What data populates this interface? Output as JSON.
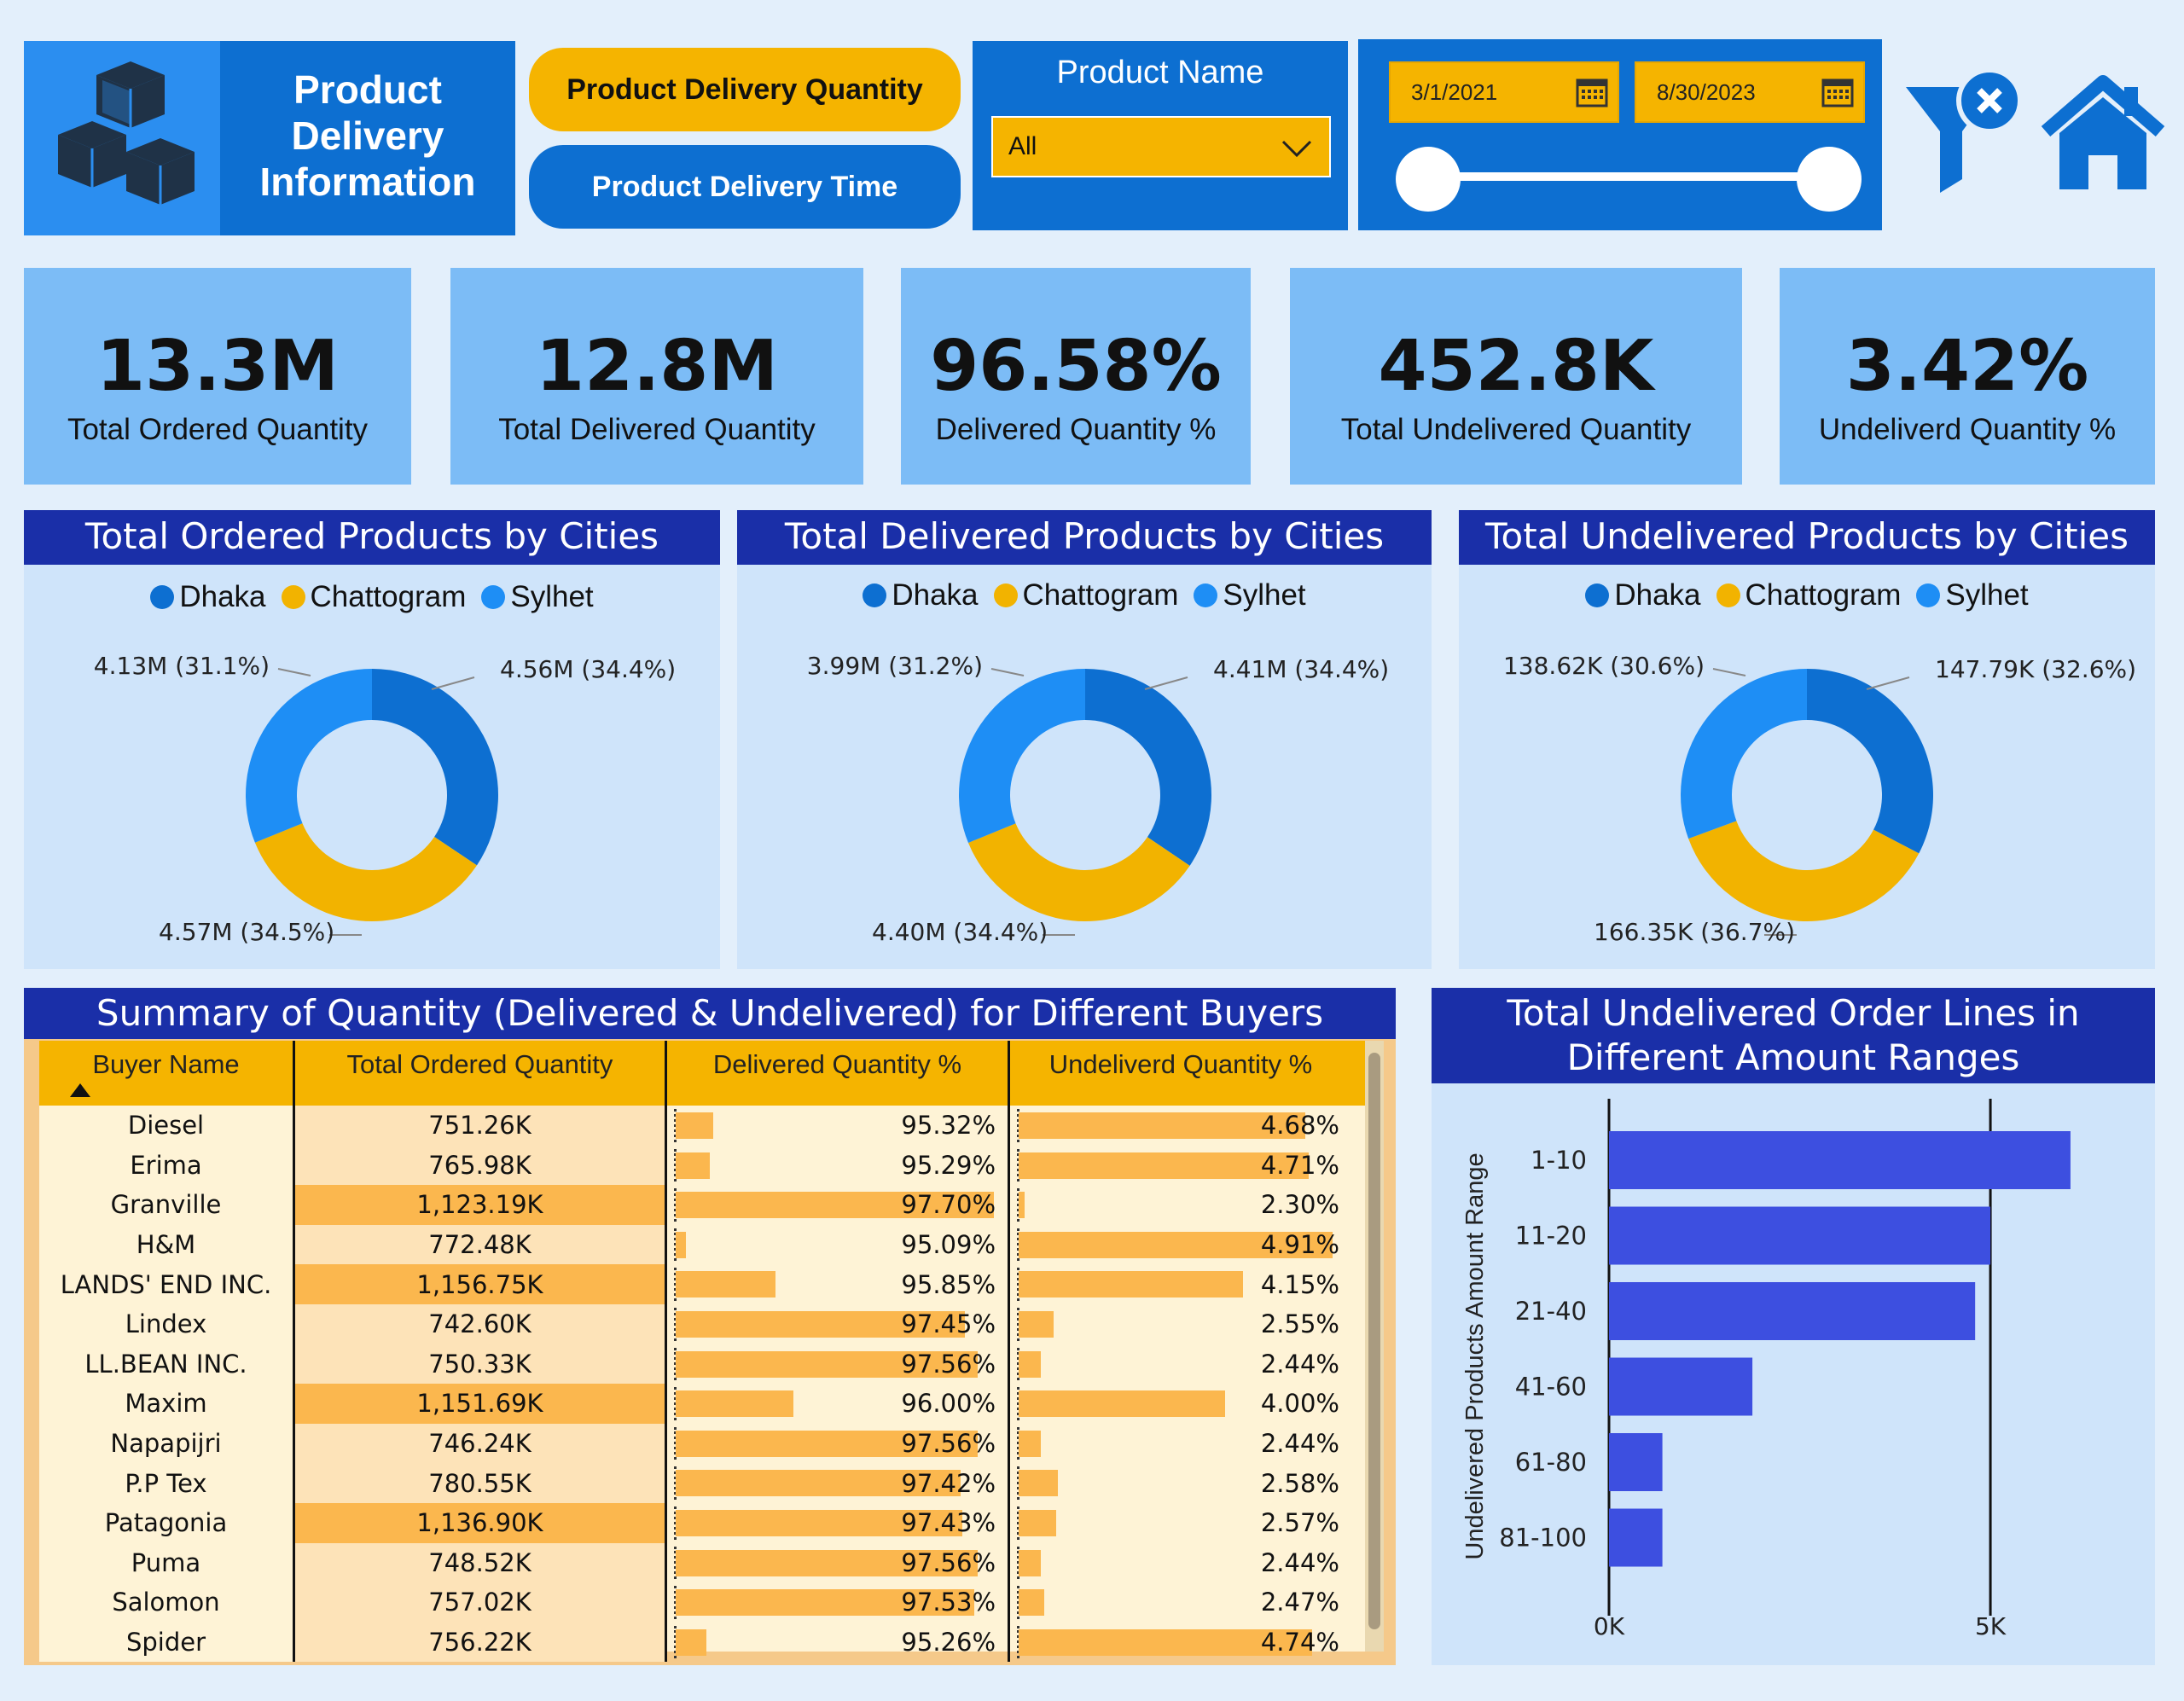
{
  "header": {
    "title": "Product Delivery Information",
    "btn_quantity": "Product Delivery Quantity",
    "btn_time": "Product Delivery Time",
    "product_slicer_label": "Product Name",
    "product_selected": "All",
    "date_start": "3/1/2021",
    "date_end": "8/30/2023"
  },
  "kpis": [
    {
      "value": "13.3M",
      "label": "Total Ordered Quantity"
    },
    {
      "value": "12.8M",
      "label": "Total Delivered Quantity"
    },
    {
      "value": "96.58%",
      "label": "Delivered Quantity %"
    },
    {
      "value": "452.8K",
      "label": "Total Undelivered Quantity"
    },
    {
      "value": "3.42%",
      "label": "Undeliverd Quantity %"
    }
  ],
  "colors": {
    "dhaka": "#0d6fd1",
    "chattogram": "#f2b300",
    "sylhet": "#1e8ef5",
    "bar": "#3d4fe0"
  },
  "legend": [
    "Dhaka",
    "Chattogram",
    "Sylhet"
  ],
  "chart_data": [
    {
      "type": "pie",
      "title": "Total Ordered Products by Cities",
      "categories": [
        "Dhaka",
        "Chattogram",
        "Sylhet"
      ],
      "values": [
        4.56,
        4.57,
        4.13
      ],
      "labels": [
        "4.56M (34.4%)",
        "4.57M (34.5%)",
        "4.13M (31.1%)"
      ]
    },
    {
      "type": "pie",
      "title": "Total Delivered Products by Cities",
      "categories": [
        "Dhaka",
        "Chattogram",
        "Sylhet"
      ],
      "values": [
        4.41,
        4.4,
        3.99
      ],
      "labels": [
        "4.41M (34.4%)",
        "4.40M (34.4%)",
        "3.99M (31.2%)"
      ]
    },
    {
      "type": "pie",
      "title": "Total Undelivered Products by Cities",
      "categories": [
        "Dhaka",
        "Chattogram",
        "Sylhet"
      ],
      "values": [
        147.79,
        166.35,
        138.62
      ],
      "labels": [
        "147.79K (32.6%)",
        "166.35K (36.7%)",
        "138.62K (30.6%)"
      ]
    },
    {
      "type": "bar",
      "orientation": "horizontal",
      "title": "Total Undelivered Order Lines in Different Amount Ranges",
      "ylabel": "Undelivered Products Amount Range",
      "categories": [
        "1-10",
        "11-20",
        "21-40",
        "41-60",
        "61-80",
        "81-100"
      ],
      "values": [
        6050,
        5000,
        4800,
        1880,
        700,
        700
      ],
      "xlim": [
        0,
        6800
      ],
      "xticks": [
        0,
        5000
      ],
      "xtick_labels": [
        "0K",
        "5K"
      ]
    }
  ],
  "table": {
    "title": "Summary of Quantity (Delivered & Undelivered) for Different Buyers",
    "columns": [
      "Buyer Name",
      "Total Ordered Quantity",
      "Delivered Quantity %",
      "Undeliverd Quantity %"
    ],
    "rows": [
      {
        "name": "Diesel",
        "ordered": "751.26K",
        "ord_num": 751.26,
        "delivered": "95.32%",
        "del_num": 95.32,
        "undelivered": "4.68%",
        "und_num": 4.68
      },
      {
        "name": "Erima",
        "ordered": "765.98K",
        "ord_num": 765.98,
        "delivered": "95.29%",
        "del_num": 95.29,
        "undelivered": "4.71%",
        "und_num": 4.71
      },
      {
        "name": "Granville",
        "ordered": "1,123.19K",
        "ord_num": 1123.19,
        "delivered": "97.70%",
        "del_num": 97.7,
        "undelivered": "2.30%",
        "und_num": 2.3
      },
      {
        "name": "H&M",
        "ordered": "772.48K",
        "ord_num": 772.48,
        "delivered": "95.09%",
        "del_num": 95.09,
        "undelivered": "4.91%",
        "und_num": 4.91
      },
      {
        "name": "LANDS' END INC.",
        "ordered": "1,156.75K",
        "ord_num": 1156.75,
        "delivered": "95.85%",
        "del_num": 95.85,
        "undelivered": "4.15%",
        "und_num": 4.15
      },
      {
        "name": "Lindex",
        "ordered": "742.60K",
        "ord_num": 742.6,
        "delivered": "97.45%",
        "del_num": 97.45,
        "undelivered": "2.55%",
        "und_num": 2.55
      },
      {
        "name": "LL.BEAN INC.",
        "ordered": "750.33K",
        "ord_num": 750.33,
        "delivered": "97.56%",
        "del_num": 97.56,
        "undelivered": "2.44%",
        "und_num": 2.44
      },
      {
        "name": "Maxim",
        "ordered": "1,151.69K",
        "ord_num": 1151.69,
        "delivered": "96.00%",
        "del_num": 96.0,
        "undelivered": "4.00%",
        "und_num": 4.0
      },
      {
        "name": "Napapijri",
        "ordered": "746.24K",
        "ord_num": 746.24,
        "delivered": "97.56%",
        "del_num": 97.56,
        "undelivered": "2.44%",
        "und_num": 2.44
      },
      {
        "name": "P.P Tex",
        "ordered": "780.55K",
        "ord_num": 780.55,
        "delivered": "97.42%",
        "del_num": 97.42,
        "undelivered": "2.58%",
        "und_num": 2.58
      },
      {
        "name": "Patagonia",
        "ordered": "1,136.90K",
        "ord_num": 1136.9,
        "delivered": "97.43%",
        "del_num": 97.43,
        "undelivered": "2.57%",
        "und_num": 2.57
      },
      {
        "name": "Puma",
        "ordered": "748.52K",
        "ord_num": 748.52,
        "delivered": "97.56%",
        "del_num": 97.56,
        "undelivered": "2.44%",
        "und_num": 2.44
      },
      {
        "name": "Salomon",
        "ordered": "757.02K",
        "ord_num": 757.02,
        "delivered": "97.53%",
        "del_num": 97.53,
        "undelivered": "2.47%",
        "und_num": 2.47
      },
      {
        "name": "Spider",
        "ordered": "756.22K",
        "ord_num": 756.22,
        "delivered": "95.26%",
        "del_num": 95.26,
        "undelivered": "4.74%",
        "und_num": 4.74
      }
    ]
  }
}
